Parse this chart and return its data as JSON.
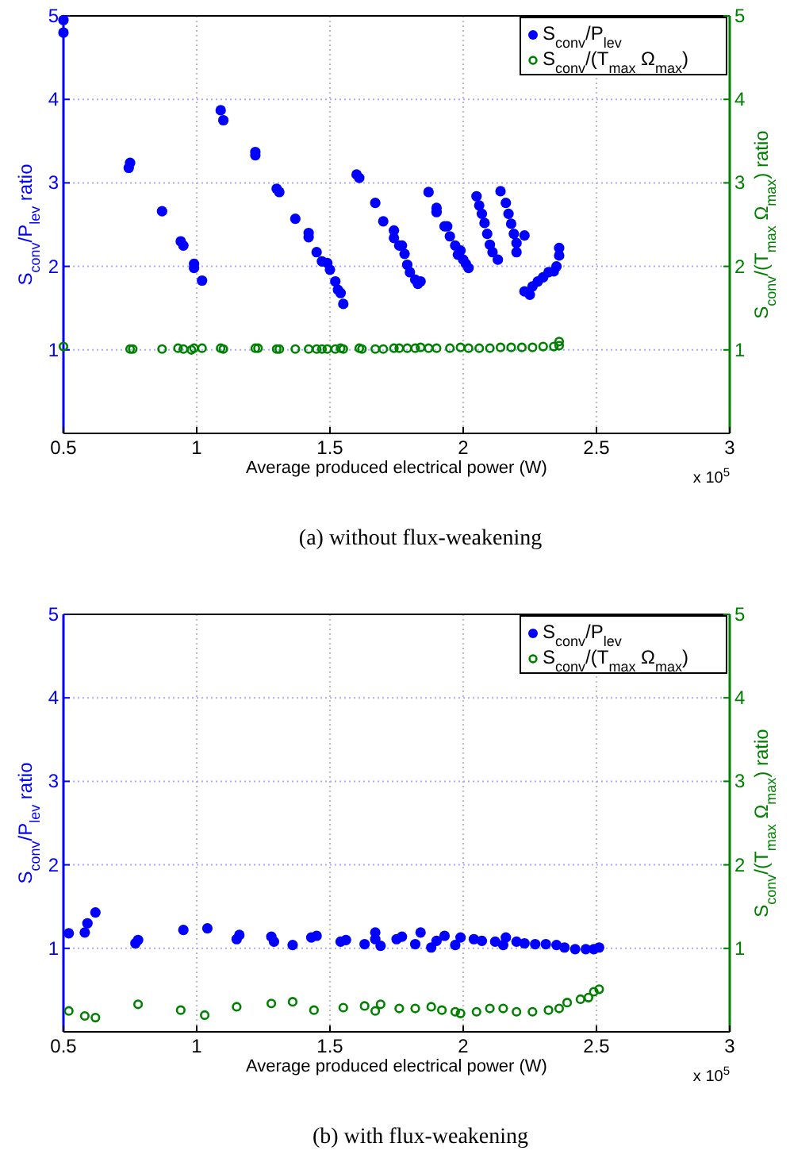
{
  "chart_data": [
    {
      "type": "scatter",
      "xlabel": "Average produced electrical power (W)",
      "ylabel": "S$_{conv}$/P$_{lev}$ ratio",
      "y2label": "S$_{conv}$/(T$_{max}$ Ω$_{max}$) ratio",
      "annotations": [
        "x 10$^{5}$",
        "(a)  without flux-weakening"
      ],
      "xlim": [
        0.5,
        3
      ],
      "xticks": [
        0.5,
        1,
        1.5,
        2,
        2.5,
        3
      ],
      "ylim": [
        0,
        5
      ],
      "yticks": [
        1,
        2,
        3,
        4,
        5
      ],
      "y2lim": [
        0,
        5
      ],
      "y2ticks": [
        1,
        2,
        3,
        4,
        5
      ],
      "grid": true,
      "legend": "top right",
      "marker": "circle",
      "series": [
        {
          "name": "S$_{conv}$/P$_{lev}$",
          "color": "#0000ff",
          "x": [
            0.5,
            0.5,
            0.75,
            0.745,
            0.87,
            0.94,
            0.95,
            0.99,
            0.99,
            1.02,
            1.09,
            1.1,
            1.22,
            1.22,
            1.3,
            1.31,
            1.37,
            1.42,
            1.42,
            1.45,
            1.47,
            1.49,
            1.5,
            1.52,
            1.53,
            1.54,
            1.55,
            1.6,
            1.61,
            1.67,
            1.7,
            1.74,
            1.74,
            1.76,
            1.77,
            1.78,
            1.79,
            1.8,
            1.82,
            1.83,
            1.84,
            1.87,
            1.9,
            1.9,
            1.93,
            1.94,
            1.95,
            1.97,
            1.99,
            1.98,
            2.0,
            2.01,
            2.02,
            2.05,
            2.06,
            2.07,
            2.08,
            2.09,
            2.1,
            2.11,
            2.13,
            2.14,
            2.16,
            2.17,
            2.18,
            2.19,
            2.2,
            2.2,
            2.23,
            2.23,
            2.25,
            2.26,
            2.28,
            2.3,
            2.32,
            2.34,
            2.35,
            2.36,
            2.36
          ],
          "values": [
            4.95,
            4.8,
            3.24,
            3.18,
            2.66,
            2.3,
            2.25,
            2.03,
            1.98,
            1.83,
            3.87,
            3.75,
            3.37,
            3.33,
            2.93,
            2.89,
            2.57,
            2.4,
            2.35,
            2.17,
            2.06,
            2.04,
            1.96,
            1.82,
            1.72,
            1.68,
            1.55,
            3.1,
            3.06,
            2.76,
            2.54,
            2.43,
            2.34,
            2.25,
            2.25,
            2.15,
            2.02,
            1.93,
            1.84,
            1.79,
            1.82,
            2.89,
            2.7,
            2.65,
            2.48,
            2.48,
            2.36,
            2.25,
            2.19,
            2.14,
            2.08,
            2.03,
            1.98,
            2.84,
            2.73,
            2.63,
            2.52,
            2.39,
            2.26,
            2.17,
            2.08,
            2.9,
            2.76,
            2.63,
            2.51,
            2.39,
            2.28,
            2.17,
            2.37,
            1.7,
            1.66,
            1.76,
            1.82,
            1.87,
            1.93,
            1.94,
            2.0,
            2.13,
            2.22
          ]
        },
        {
          "name": "S$_{conv}$/(T$_{max}$ Ω$_{max}$)",
          "color": "#008000",
          "axis": "y2",
          "x": [
            0.5,
            0.75,
            0.76,
            0.87,
            0.93,
            0.95,
            0.98,
            0.99,
            1.02,
            1.09,
            1.1,
            1.22,
            1.23,
            1.3,
            1.31,
            1.37,
            1.42,
            1.45,
            1.47,
            1.49,
            1.52,
            1.54,
            1.55,
            1.61,
            1.62,
            1.67,
            1.7,
            1.74,
            1.76,
            1.79,
            1.82,
            1.84,
            1.87,
            1.9,
            1.95,
            1.99,
            2.02,
            2.06,
            2.1,
            2.14,
            2.18,
            2.22,
            2.26,
            2.3,
            2.34,
            2.36,
            2.36
          ],
          "values": [
            1.04,
            1.01,
            1.01,
            1.01,
            1.02,
            1.01,
            1.0,
            1.02,
            1.02,
            1.02,
            1.01,
            1.02,
            1.02,
            1.01,
            1.01,
            1.01,
            1.01,
            1.01,
            1.01,
            1.01,
            1.01,
            1.02,
            1.01,
            1.02,
            1.01,
            1.01,
            1.01,
            1.02,
            1.02,
            1.02,
            1.02,
            1.03,
            1.02,
            1.02,
            1.02,
            1.03,
            1.02,
            1.02,
            1.02,
            1.03,
            1.03,
            1.03,
            1.03,
            1.04,
            1.04,
            1.05,
            1.1
          ]
        }
      ]
    },
    {
      "type": "scatter",
      "xlabel": "Average produced electrical power (W)",
      "ylabel": "S$_{conv}$/P$_{lev}$ ratio",
      "y2label": "S$_{conv}$/(T$_{max}$ Ω$_{max}$) ratio",
      "annotations": [
        "x 10$^{5}$",
        "(b)  with flux-weakening"
      ],
      "xlim": [
        0.5,
        3
      ],
      "xticks": [
        0.5,
        1,
        1.5,
        2,
        2.5,
        3
      ],
      "ylim": [
        0,
        5
      ],
      "yticks": [
        1,
        2,
        3,
        4,
        5
      ],
      "y2lim": [
        0,
        5
      ],
      "y2ticks": [
        1,
        2,
        3,
        4,
        5
      ],
      "grid": true,
      "legend": "top right",
      "marker": "circle",
      "series": [
        {
          "name": "S$_{conv}$/P$_{lev}$",
          "color": "#0000ff",
          "x": [
            0.52,
            0.58,
            0.59,
            0.62,
            0.77,
            0.78,
            0.95,
            1.04,
            1.15,
            1.16,
            1.28,
            1.29,
            1.36,
            1.43,
            1.45,
            1.54,
            1.56,
            1.63,
            1.67,
            1.67,
            1.69,
            1.75,
            1.77,
            1.82,
            1.84,
            1.88,
            1.9,
            1.93,
            1.97,
            1.99,
            2.04,
            2.07,
            2.12,
            2.15,
            2.16,
            2.2,
            2.23,
            2.27,
            2.31,
            2.35,
            2.38,
            2.42,
            2.46,
            2.49,
            2.51
          ],
          "values": [
            1.18,
            1.19,
            1.3,
            1.43,
            1.06,
            1.1,
            1.22,
            1.24,
            1.11,
            1.16,
            1.14,
            1.08,
            1.04,
            1.13,
            1.15,
            1.08,
            1.1,
            1.05,
            1.19,
            1.11,
            1.03,
            1.11,
            1.14,
            1.05,
            1.19,
            1.01,
            1.09,
            1.15,
            1.04,
            1.13,
            1.11,
            1.09,
            1.08,
            1.04,
            1.13,
            1.08,
            1.06,
            1.05,
            1.05,
            1.04,
            1.01,
            0.99,
            0.99,
            0.99,
            1.01
          ]
        },
        {
          "name": "S$_{conv}$/(T$_{max}$ Ω$_{max}$)",
          "color": "#008000",
          "axis": "y2",
          "x": [
            0.52,
            0.58,
            0.62,
            0.78,
            0.94,
            1.03,
            1.15,
            1.28,
            1.36,
            1.44,
            1.55,
            1.63,
            1.67,
            1.69,
            1.76,
            1.82,
            1.88,
            1.92,
            1.97,
            1.99,
            2.05,
            2.1,
            2.15,
            2.2,
            2.26,
            2.32,
            2.36,
            2.39,
            2.44,
            2.47,
            2.49,
            2.51
          ],
          "values": [
            0.25,
            0.19,
            0.17,
            0.33,
            0.26,
            0.2,
            0.3,
            0.34,
            0.36,
            0.26,
            0.29,
            0.31,
            0.25,
            0.33,
            0.28,
            0.28,
            0.3,
            0.26,
            0.24,
            0.22,
            0.24,
            0.28,
            0.28,
            0.24,
            0.24,
            0.26,
            0.28,
            0.35,
            0.39,
            0.41,
            0.48,
            0.51
          ]
        }
      ]
    }
  ]
}
